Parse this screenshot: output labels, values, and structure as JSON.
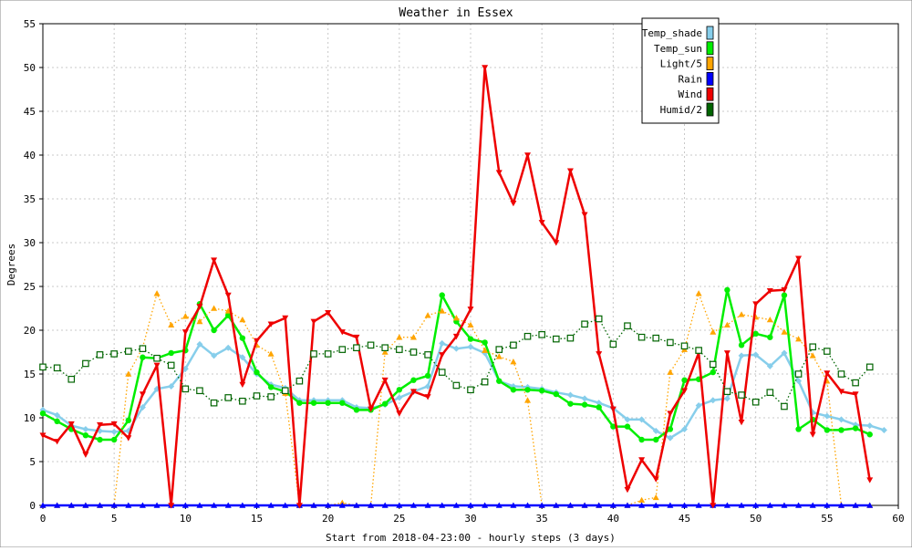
{
  "chart_data": {
    "type": "line",
    "title": "Weather in Essex",
    "xlabel": "Start from 2018-04-23:00 - hourly steps (3 days)",
    "ylabel": "Degrees",
    "xlim": [
      0,
      60
    ],
    "ylim": [
      0,
      55
    ],
    "xticks": [
      "0",
      "5",
      "10",
      "15",
      "20",
      "25",
      "30",
      "35",
      "40",
      "45",
      "50",
      "55",
      "60"
    ],
    "yticks": [
      "0",
      "5",
      "10",
      "15",
      "20",
      "25",
      "30",
      "35",
      "40",
      "45",
      "50",
      "55"
    ],
    "grid": true,
    "legend_position": "top-right",
    "series": [
      {
        "name": "Temp_shade",
        "color": "#87ceeb",
        "style": "solid",
        "marker": "diamond",
        "values": [
          10.9,
          10.3,
          9.1,
          8.7,
          8.5,
          8.4,
          8.5,
          11.2,
          13.3,
          13.6,
          15.6,
          18.4,
          17.1,
          18.0,
          16.9,
          15.0,
          13.8,
          13.4,
          12.0,
          12.0,
          12.0,
          12.0,
          11.2,
          11.1,
          11.5,
          12.3,
          13.0,
          13.6,
          18.5,
          17.9,
          18.1,
          17.4,
          14.2,
          13.6,
          13.5,
          13.3,
          12.9,
          12.6,
          12.2,
          11.7,
          11.1,
          9.8,
          9.8,
          8.5,
          7.7,
          8.7,
          11.4,
          12.0,
          12.2,
          17.1,
          17.2,
          15.9,
          17.4,
          14.2,
          10.6,
          10.2,
          9.8,
          9.2,
          9.1,
          8.6
        ]
      },
      {
        "name": "Temp_sun",
        "color": "#00ee00",
        "style": "solid",
        "marker": "circle",
        "values": [
          10.5,
          9.6,
          8.7,
          8.0,
          7.5,
          7.5,
          9.7,
          16.9,
          16.8,
          17.4,
          17.7,
          23.0,
          20.0,
          21.7,
          19.1,
          15.2,
          13.5,
          13.0,
          11.7,
          11.7,
          11.7,
          11.7,
          10.9,
          10.9,
          11.6,
          13.2,
          14.3,
          14.8,
          24.0,
          21.0,
          19.0,
          18.6,
          14.2,
          13.2,
          13.2,
          13.1,
          12.7,
          11.6,
          11.5,
          11.2,
          9.0,
          9.0,
          7.5,
          7.5,
          8.7,
          14.3,
          14.4,
          15.2,
          24.6,
          18.3,
          19.6,
          19.2,
          24.0,
          8.7,
          9.8,
          8.6,
          8.6,
          8.8,
          8.1
        ]
      },
      {
        "name": "Light/5",
        "color": "#ffa500",
        "style": "dotted",
        "marker": "triangle-up",
        "values": [
          0,
          0,
          0,
          0,
          0,
          0,
          15.0,
          18.0,
          24.2,
          20.6,
          21.6,
          21.0,
          22.5,
          22.2,
          21.2,
          18.3,
          17.3,
          12.8,
          0,
          0,
          0,
          0.3,
          0,
          0,
          17.5,
          19.2,
          19.2,
          21.7,
          22.2,
          21.4,
          20.6,
          17.7,
          17.0,
          16.4,
          12.0,
          0,
          0,
          0,
          0,
          0,
          0,
          0,
          0.6,
          0.9,
          15.2,
          17.8,
          24.2,
          19.8,
          20.6,
          21.8,
          21.5,
          21.2,
          19.8,
          19.0,
          17.1,
          14.2,
          0,
          0,
          0
        ]
      },
      {
        "name": "Rain",
        "color": "#0000ff",
        "style": "solid",
        "marker": "triangle-up",
        "values": [
          0,
          0,
          0,
          0,
          0,
          0,
          0,
          0,
          0,
          0,
          0,
          0,
          0,
          0,
          0,
          0,
          0,
          0,
          0,
          0,
          0,
          0,
          0,
          0,
          0,
          0,
          0,
          0,
          0,
          0,
          0,
          0,
          0,
          0,
          0,
          0,
          0,
          0,
          0,
          0,
          0,
          0,
          0,
          0,
          0,
          0,
          0,
          0,
          0,
          0,
          0,
          0,
          0,
          0,
          0,
          0,
          0,
          0,
          0
        ]
      },
      {
        "name": "Wind",
        "color": "#ee0000",
        "style": "solid",
        "marker": "triangle-down",
        "values": [
          8.0,
          7.3,
          9.3,
          5.8,
          9.2,
          9.3,
          7.7,
          12.7,
          16.0,
          0,
          19.8,
          22.7,
          28.0,
          24.0,
          13.8,
          18.8,
          20.7,
          21.4,
          0,
          21.0,
          22.0,
          19.8,
          19.2,
          11.0,
          14.3,
          10.5,
          13.0,
          12.4,
          17.2,
          19.3,
          22.4,
          50.0,
          38.0,
          34.5,
          40.0,
          32.3,
          30.0,
          38.2,
          33.2,
          17.3,
          11.0,
          1.8,
          5.2,
          3.0,
          10.5,
          13.1,
          17.4,
          0,
          17.4,
          9.5,
          23.0,
          24.5,
          24.6,
          28.2,
          8.1,
          15.1,
          13.0,
          12.7,
          2.9
        ]
      },
      {
        "name": "Humid/2",
        "color": "#006400",
        "style": "dotted",
        "marker": "square",
        "values": [
          15.8,
          15.7,
          14.4,
          16.2,
          17.2,
          17.3,
          17.6,
          17.9,
          16.8,
          16.0,
          13.3,
          13.1,
          11.7,
          12.3,
          11.9,
          12.5,
          12.4,
          13.1,
          14.2,
          17.3,
          17.3,
          17.8,
          18.0,
          18.3,
          18.0,
          17.8,
          17.5,
          17.2,
          15.2,
          13.7,
          13.2,
          14.1,
          17.8,
          18.3,
          19.3,
          19.5,
          19.0,
          19.1,
          20.7,
          21.3,
          18.4,
          20.5,
          19.2,
          19.1,
          18.6,
          18.2,
          17.7,
          16.1,
          13.0,
          12.6,
          11.8,
          12.9,
          11.3,
          15.0,
          18.1,
          17.6,
          15.0,
          14.0,
          15.8
        ]
      }
    ]
  }
}
